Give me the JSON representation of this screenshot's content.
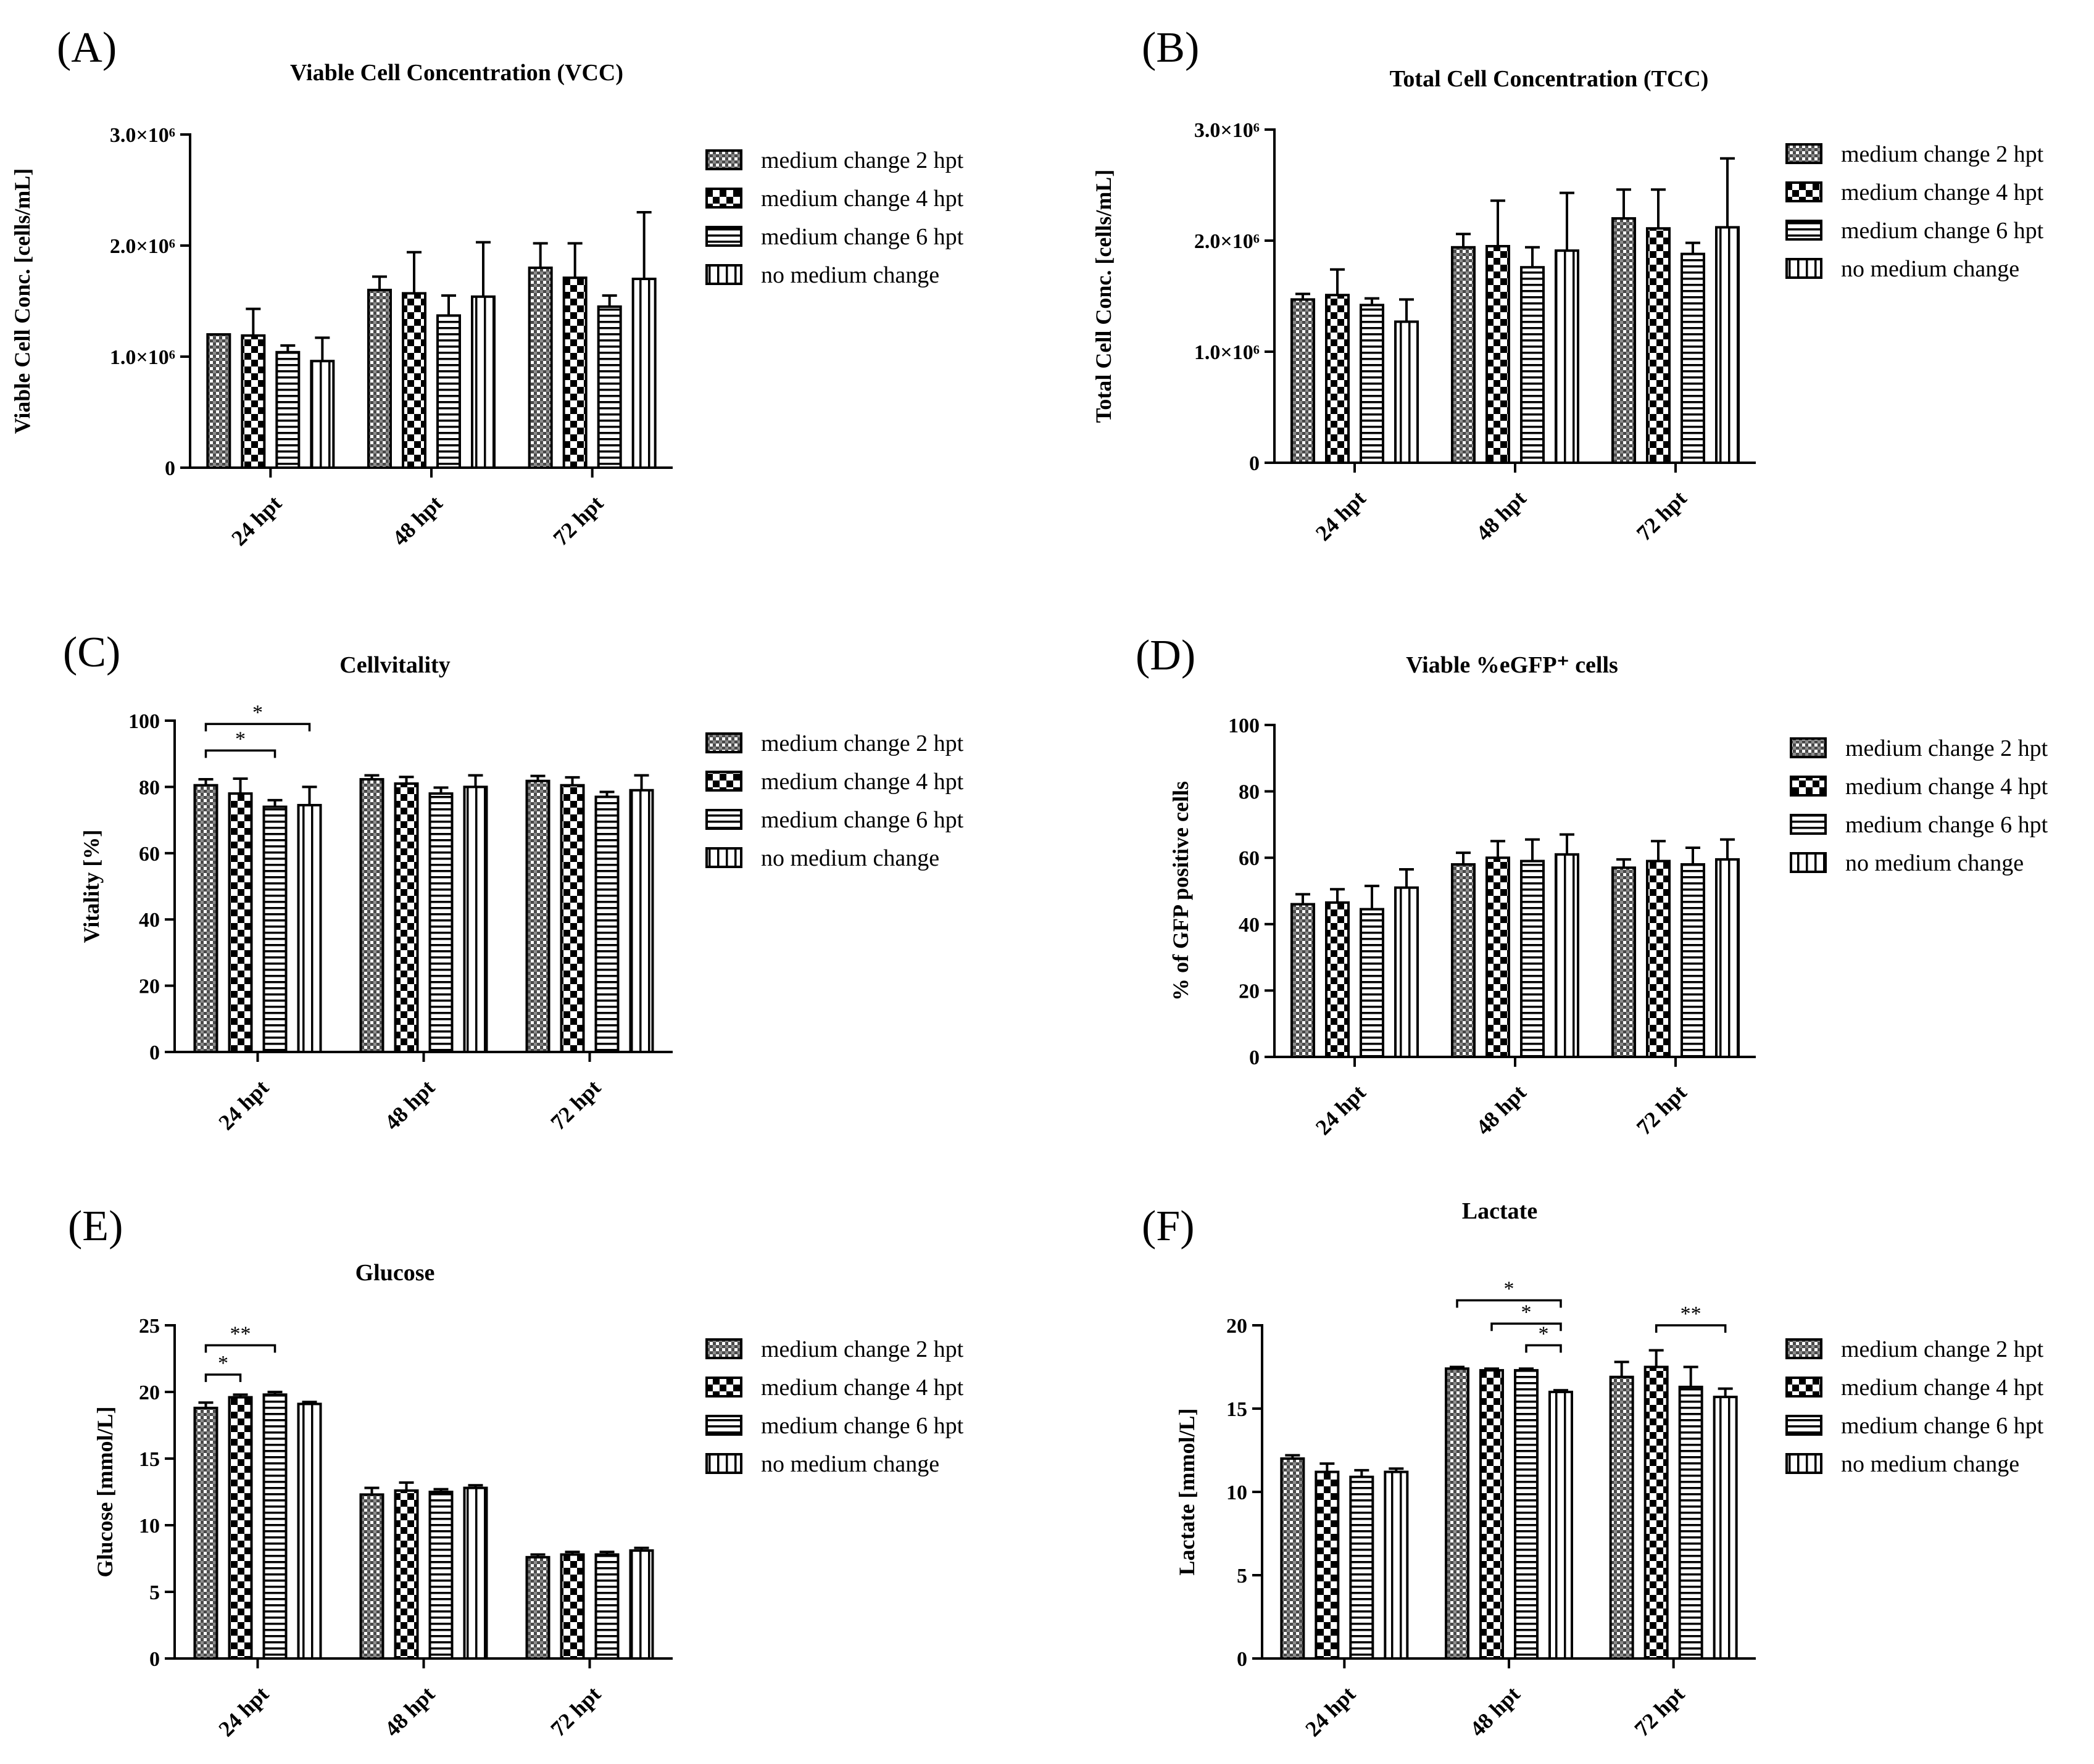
{
  "legend_labels": [
    "medium change 2 hpt",
    "medium change 4 hpt",
    "medium change 6 hpt",
    "no medium change"
  ],
  "chart_data": [
    {
      "panel": "(A)",
      "type": "bar",
      "title": "Viable Cell Concentration (VCC)",
      "ylabel": "Viable Cell Conc. [cells/mL]",
      "categories": [
        "24 hpt",
        "48 hpt",
        "72 hpt"
      ],
      "ylim": [
        0,
        3000000
      ],
      "yticks": [
        0,
        1000000,
        2000000,
        3000000
      ],
      "ytick_labels": [
        "0",
        "1.0×10⁶",
        "2.0×10⁶",
        "3.0×10⁶"
      ],
      "series": [
        {
          "name": "medium change 2 hpt",
          "values": [
            1200000,
            1600000,
            1800000
          ],
          "errors": [
            0,
            120000,
            220000
          ]
        },
        {
          "name": "medium change 4 hpt",
          "values": [
            1190000,
            1570000,
            1710000
          ],
          "errors": [
            240000,
            370000,
            310000
          ]
        },
        {
          "name": "medium change 6 hpt",
          "values": [
            1040000,
            1370000,
            1450000
          ],
          "errors": [
            60000,
            180000,
            100000
          ]
        },
        {
          "name": "no medium change",
          "values": [
            960000,
            1540000,
            1700000
          ],
          "errors": [
            210000,
            490000,
            600000
          ]
        }
      ],
      "significance": []
    },
    {
      "panel": "(B)",
      "type": "bar",
      "title": "Total Cell Concentration (TCC)",
      "ylabel": "Total Cell Conc. [cells/mL]",
      "categories": [
        "24 hpt",
        "48 hpt",
        "72 hpt"
      ],
      "ylim": [
        0,
        3000000
      ],
      "yticks": [
        0,
        1000000,
        2000000,
        3000000
      ],
      "ytick_labels": [
        "0",
        "1.0×10⁶",
        "2.0×10⁶",
        "3.0×10⁶"
      ],
      "series": [
        {
          "name": "medium change 2 hpt",
          "values": [
            1470000,
            1940000,
            2200000
          ],
          "errors": [
            50000,
            120000,
            260000
          ]
        },
        {
          "name": "medium change 4 hpt",
          "values": [
            1510000,
            1950000,
            2110000
          ],
          "errors": [
            230000,
            410000,
            350000
          ]
        },
        {
          "name": "medium change 6 hpt",
          "values": [
            1420000,
            1760000,
            1880000
          ],
          "errors": [
            60000,
            180000,
            100000
          ]
        },
        {
          "name": "no medium change",
          "values": [
            1270000,
            1910000,
            2120000
          ],
          "errors": [
            200000,
            520000,
            620000
          ]
        }
      ],
      "significance": []
    },
    {
      "panel": "(C)",
      "type": "bar",
      "title": "Cellvitality",
      "ylabel": "Vitality [%]",
      "categories": [
        "24 hpt",
        "48 hpt",
        "72 hpt"
      ],
      "ylim": [
        0,
        100
      ],
      "yticks": [
        0,
        20,
        40,
        60,
        80,
        100
      ],
      "ytick_labels": [
        "0",
        "20",
        "40",
        "60",
        "80",
        "100"
      ],
      "series": [
        {
          "name": "medium change 2 hpt",
          "values": [
            80.5,
            82.3,
            81.8
          ],
          "errors": [
            1.8,
            1.2,
            1.5
          ]
        },
        {
          "name": "medium change 4 hpt",
          "values": [
            78,
            81,
            80.5
          ],
          "errors": [
            4.5,
            2,
            2.4
          ]
        },
        {
          "name": "medium change 6 hpt",
          "values": [
            74,
            78,
            77
          ],
          "errors": [
            2,
            1.8,
            1.5
          ]
        },
        {
          "name": "no medium change",
          "values": [
            74.5,
            80,
            79
          ],
          "errors": [
            5.5,
            3.5,
            4.5
          ]
        }
      ],
      "significance": [
        {
          "category": 0,
          "from": 0,
          "to": 3,
          "label": "*",
          "y": 99
        },
        {
          "category": 0,
          "from": 0,
          "to": 2,
          "label": "*",
          "y": 91
        }
      ]
    },
    {
      "panel": "(D)",
      "type": "bar",
      "title": "Viable %eGFP⁺ cells",
      "ylabel": "% of GFP positive cells",
      "categories": [
        "24 hpt",
        "48 hpt",
        "72 hpt"
      ],
      "ylim": [
        0,
        100
      ],
      "yticks": [
        0,
        20,
        40,
        60,
        80,
        100
      ],
      "ytick_labels": [
        "0",
        "20",
        "40",
        "60",
        "80",
        "100"
      ],
      "series": [
        {
          "name": "medium change 2 hpt",
          "values": [
            46,
            58,
            57
          ],
          "errors": [
            3,
            3.5,
            2.5
          ]
        },
        {
          "name": "medium change 4 hpt",
          "values": [
            46.5,
            60,
            59
          ],
          "errors": [
            4,
            5,
            6
          ]
        },
        {
          "name": "medium change 6 hpt",
          "values": [
            44.5,
            59,
            58
          ],
          "errors": [
            7,
            6.5,
            5
          ]
        },
        {
          "name": "no medium change",
          "values": [
            51,
            61,
            59.5
          ],
          "errors": [
            5.5,
            6,
            6
          ]
        }
      ],
      "significance": []
    },
    {
      "panel": "(E)",
      "type": "bar",
      "title": "Glucose",
      "ylabel": "Glucose [mmol/L]",
      "categories": [
        "24 hpt",
        "48 hpt",
        "72 hpt"
      ],
      "ylim": [
        0,
        25
      ],
      "yticks": [
        0,
        5,
        10,
        15,
        20,
        25
      ],
      "ytick_labels": [
        "0",
        "5",
        "10",
        "15",
        "20",
        "25"
      ],
      "series": [
        {
          "name": "medium change 2 hpt",
          "values": [
            18.8,
            12.3,
            7.6
          ],
          "errors": [
            0.4,
            0.5,
            0.2
          ]
        },
        {
          "name": "medium change 4 hpt",
          "values": [
            19.6,
            12.6,
            7.8
          ],
          "errors": [
            0.2,
            0.6,
            0.2
          ]
        },
        {
          "name": "medium change 6 hpt",
          "values": [
            19.8,
            12.5,
            7.8
          ],
          "errors": [
            0.2,
            0.2,
            0.2
          ]
        },
        {
          "name": "no medium change",
          "values": [
            19.1,
            12.8,
            8.1
          ],
          "errors": [
            0.15,
            0.2,
            0.2
          ]
        }
      ],
      "significance": [
        {
          "category": 0,
          "from": 0,
          "to": 2,
          "label": "**",
          "y": 23.5
        },
        {
          "category": 0,
          "from": 0,
          "to": 1,
          "label": "*",
          "y": 21.3
        }
      ]
    },
    {
      "panel": "(F)",
      "type": "bar",
      "title": "Lactate",
      "ylabel": "Lactate [mmol/L]",
      "categories": [
        "24 hpt",
        "48 hpt",
        "72 hpt"
      ],
      "ylim": [
        0,
        20
      ],
      "yticks": [
        0,
        5,
        10,
        15,
        20
      ],
      "ytick_labels": [
        "0",
        "5",
        "10",
        "15",
        "20"
      ],
      "series": [
        {
          "name": "medium change 2 hpt",
          "values": [
            12,
            17.4,
            16.9
          ],
          "errors": [
            0.2,
            0.1,
            0.9
          ]
        },
        {
          "name": "medium change 4 hpt",
          "values": [
            11.2,
            17.3,
            17.5
          ],
          "errors": [
            0.5,
            0.1,
            1
          ]
        },
        {
          "name": "medium change 6 hpt",
          "values": [
            10.9,
            17.3,
            16.3
          ],
          "errors": [
            0.4,
            0.1,
            1.2
          ]
        },
        {
          "name": "no medium change",
          "values": [
            11.2,
            16,
            15.7
          ],
          "errors": [
            0.2,
            0.1,
            0.5
          ]
        }
      ],
      "significance": [
        {
          "category": 1,
          "from": 0,
          "to": 3,
          "label": "*",
          "y": 21.5
        },
        {
          "category": 1,
          "from": 1,
          "to": 3,
          "label": "*",
          "y": 20.1
        },
        {
          "category": 1,
          "from": 2,
          "to": 3,
          "label": "*",
          "y": 18.8
        },
        {
          "category": 2,
          "from": 1,
          "to": 3,
          "label": "**",
          "y": 20
        }
      ]
    }
  ]
}
